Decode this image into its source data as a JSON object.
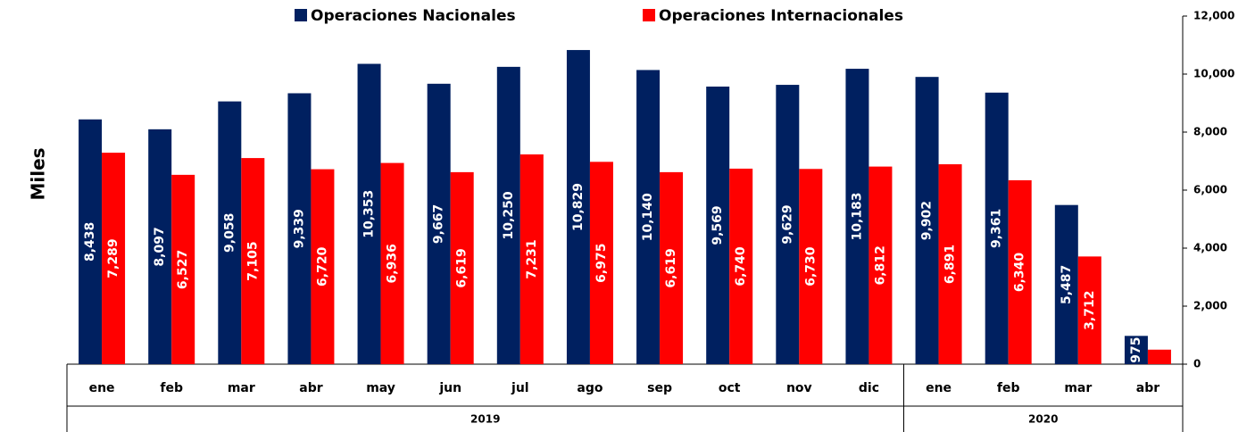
{
  "chart_data": {
    "type": "bar",
    "y_axis_label": "Miles",
    "categories": [
      "ene",
      "feb",
      "mar",
      "abr",
      "may",
      "jun",
      "jul",
      "ago",
      "sep",
      "oct",
      "nov",
      "dic",
      "ene",
      "feb",
      "mar",
      "abr"
    ],
    "groups": [
      {
        "name": "2019",
        "start": 0,
        "end": 11
      },
      {
        "name": "2020",
        "start": 12,
        "end": 15
      }
    ],
    "series": [
      {
        "name": "Operaciones Nacionales",
        "color": "#002060",
        "values": [
          8438,
          8097,
          9058,
          9339,
          10353,
          9667,
          10250,
          10829,
          10140,
          9569,
          9629,
          10183,
          9902,
          9361,
          5487,
          975
        ],
        "value_labels": [
          "8,438",
          "8,097",
          "9,058",
          "9,339",
          "10,353",
          "9,667",
          "10,250",
          "10,829",
          "10,140",
          "9,569",
          "9,629",
          "10,183",
          "9,902",
          "9,361",
          "5,487",
          "975"
        ]
      },
      {
        "name": "Operaciones Internacionales",
        "color": "#ff0000",
        "values": [
          7289,
          6527,
          7105,
          6720,
          6936,
          6619,
          7231,
          6975,
          6619,
          6740,
          6730,
          6812,
          6891,
          6340,
          3712,
          500
        ],
        "value_labels": [
          "7,289",
          "6,527",
          "7,105",
          "6,720",
          "6,936",
          "6,619",
          "7,231",
          "6,975",
          "6,619",
          "6,740",
          "6,730",
          "6,812",
          "6,891",
          "6,340",
          "3,712",
          null
        ]
      }
    ],
    "ylim": [
      0,
      12000
    ],
    "yticks": [
      0,
      {
        "value": 2000,
        "label": "2,000"
      },
      {
        "value": 4000,
        "label": "4,000"
      },
      {
        "value": 6000,
        "label": "6,000"
      },
      {
        "value": 8000,
        "label": "8,000"
      },
      {
        "value": 10000,
        "label": "10,000"
      },
      {
        "value": 12000,
        "label": "12,000"
      }
    ],
    "y_axis_side": "right",
    "legend": "top"
  }
}
